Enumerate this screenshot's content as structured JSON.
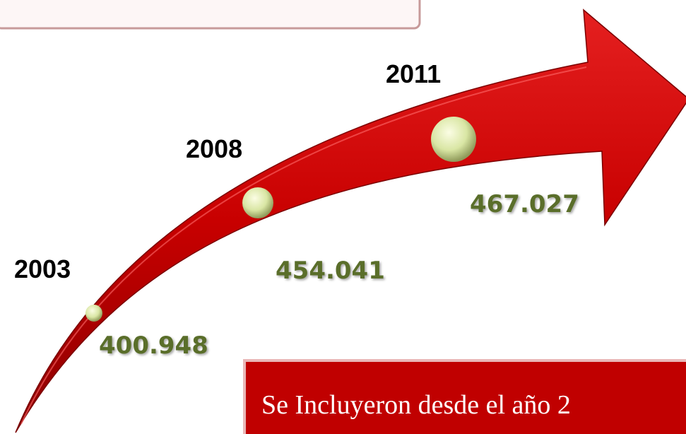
{
  "milestones": [
    {
      "year": "2003",
      "value": "400.948"
    },
    {
      "year": "2008",
      "value": "454.041"
    },
    {
      "year": "2011",
      "value": "467.027"
    }
  ],
  "note": "Se Incluyeron desde el año 2"
}
